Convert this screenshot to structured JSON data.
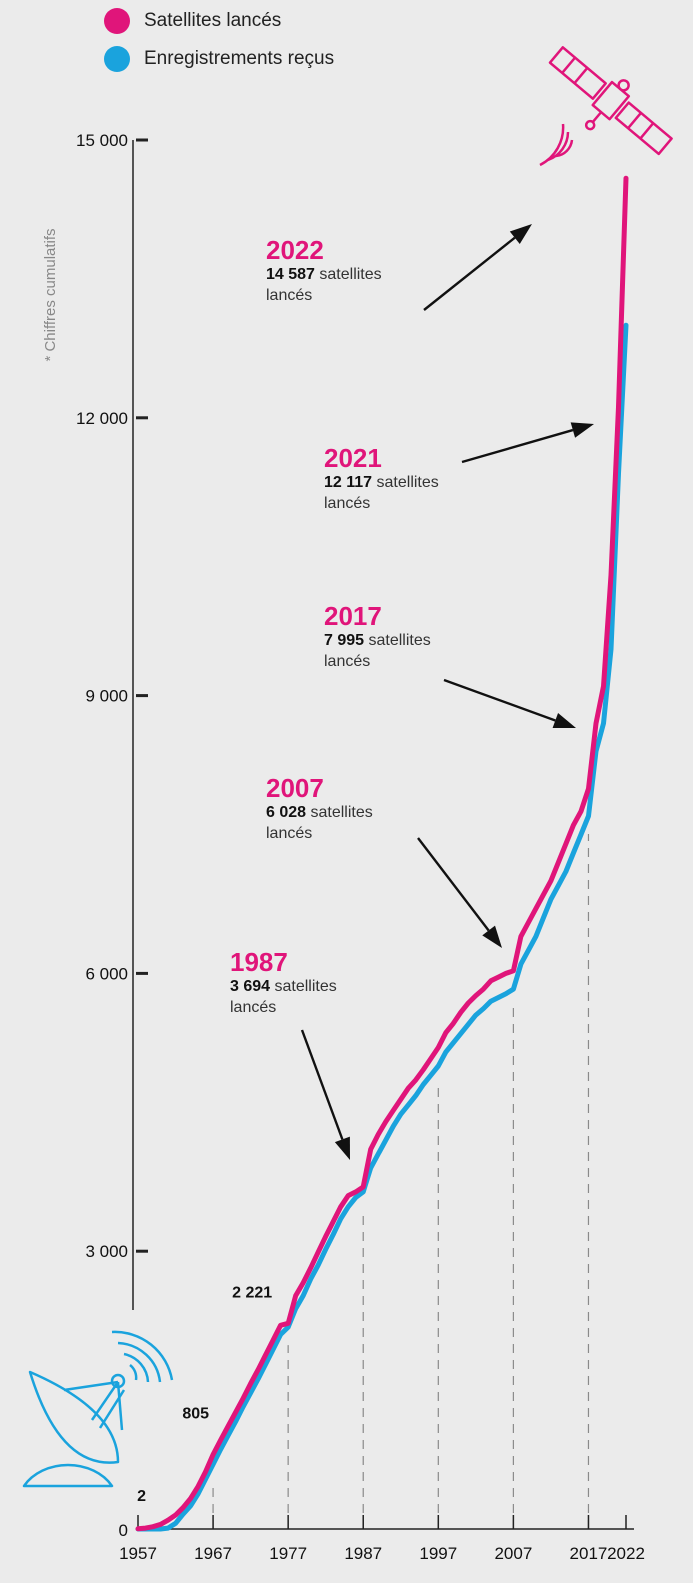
{
  "colors": {
    "launched": "#e0157a",
    "registered": "#1aa3dd",
    "axis": "#222222",
    "guide": "#8a8a8a",
    "background": "#ebebeb"
  },
  "legend": [
    {
      "label": "Satellites lancés",
      "color": "#e0157a"
    },
    {
      "label": "Enregistrements reçus",
      "color": "#1aa3dd"
    }
  ],
  "axis_note": "* Chiffres cumulatifs",
  "annotations": [
    {
      "year": "2022",
      "value": "14 587",
      "text": "satellites",
      "text2": "lancés"
    },
    {
      "year": "2021",
      "value": "12 117",
      "text": "satellites",
      "text2": "lancés"
    },
    {
      "year": "2017",
      "value": "7 995",
      "text": "satellites",
      "text2": "lancés"
    },
    {
      "year": "2007",
      "value": "6 028",
      "text": "satellites",
      "text2": "lancés"
    },
    {
      "year": "1987",
      "value": "3 694",
      "text": "satellites",
      "text2": "lancés"
    }
  ],
  "icons": [
    "satellite-icon",
    "satellite-dish-icon"
  ],
  "chart_data": {
    "type": "line",
    "ylabel": "* Chiffres cumulatifs",
    "ylim": [
      0,
      15000
    ],
    "yticks": [
      0,
      3000,
      6000,
      9000,
      12000,
      15000
    ],
    "ytick_labels": [
      "0",
      "3 000",
      "6 000",
      "9 000",
      "12 000",
      "15 000"
    ],
    "xlim": [
      1957,
      2022
    ],
    "xticks": [
      1957,
      1967,
      1977,
      1987,
      1997,
      2007,
      2017,
      2022
    ],
    "xtick_labels": [
      "1957",
      "1967",
      "1977",
      "1987",
      "1997",
      "2007",
      "2017",
      "2022"
    ],
    "point_labels": [
      {
        "x": 1957,
        "y": 2,
        "label": "2"
      },
      {
        "x": 1967,
        "y": 805,
        "label": "805"
      },
      {
        "x": 1977,
        "y": 2221,
        "label": "2 221"
      }
    ],
    "series": [
      {
        "name": "Satellites lancés",
        "x": [
          1957,
          1958,
          1959,
          1960,
          1961,
          1962,
          1963,
          1964,
          1965,
          1966,
          1967,
          1968,
          1969,
          1970,
          1971,
          1972,
          1973,
          1974,
          1975,
          1976,
          1977,
          1978,
          1979,
          1980,
          1981,
          1982,
          1983,
          1984,
          1985,
          1986,
          1987,
          1988,
          1989,
          1990,
          1991,
          1992,
          1993,
          1994,
          1995,
          1996,
          1997,
          1998,
          1999,
          2000,
          2001,
          2002,
          2003,
          2004,
          2005,
          2006,
          2007,
          2008,
          2009,
          2010,
          2011,
          2012,
          2013,
          2014,
          2015,
          2016,
          2017,
          2018,
          2019,
          2020,
          2021,
          2022
        ],
        "y": [
          2,
          10,
          25,
          50,
          95,
          150,
          230,
          330,
          460,
          620,
          805,
          960,
          1110,
          1260,
          1410,
          1570,
          1720,
          1880,
          2040,
          2200,
          2221,
          2520,
          2660,
          2820,
          2990,
          3160,
          3320,
          3480,
          3600,
          3640,
          3694,
          4100,
          4260,
          4400,
          4520,
          4640,
          4760,
          4850,
          4960,
          5080,
          5200,
          5360,
          5460,
          5580,
          5680,
          5760,
          5830,
          5920,
          5960,
          6000,
          6028,
          6400,
          6550,
          6700,
          6850,
          7000,
          7200,
          7400,
          7600,
          7750,
          7995,
          8700,
          9100,
          10300,
          12117,
          14587
        ]
      },
      {
        "name": "Enregistrements reçus",
        "x": [
          1957,
          1958,
          1959,
          1960,
          1961,
          1962,
          1963,
          1964,
          1965,
          1966,
          1967,
          1968,
          1969,
          1970,
          1971,
          1972,
          1973,
          1974,
          1975,
          1976,
          1977,
          1978,
          1979,
          1980,
          1981,
          1982,
          1983,
          1984,
          1985,
          1986,
          1987,
          1988,
          1989,
          1990,
          1991,
          1992,
          1993,
          1994,
          1995,
          1996,
          1997,
          1998,
          1999,
          2000,
          2001,
          2002,
          2003,
          2004,
          2005,
          2006,
          2007,
          2008,
          2009,
          2010,
          2011,
          2012,
          2013,
          2014,
          2015,
          2016,
          2017,
          2018,
          2019,
          2020,
          2021,
          2022
        ],
        "y": [
          0,
          0,
          0,
          0,
          10,
          60,
          160,
          250,
          380,
          540,
          700,
          860,
          1010,
          1160,
          1320,
          1470,
          1620,
          1780,
          1940,
          2100,
          2180,
          2380,
          2520,
          2700,
          2850,
          3020,
          3180,
          3350,
          3480,
          3580,
          3640,
          3900,
          4050,
          4200,
          4350,
          4480,
          4580,
          4680,
          4800,
          4900,
          5000,
          5150,
          5250,
          5350,
          5450,
          5550,
          5620,
          5700,
          5740,
          5780,
          5830,
          6100,
          6250,
          6400,
          6600,
          6800,
          6950,
          7100,
          7300,
          7500,
          7700,
          8400,
          8700,
          9500,
          11400,
          13000
        ]
      }
    ]
  }
}
